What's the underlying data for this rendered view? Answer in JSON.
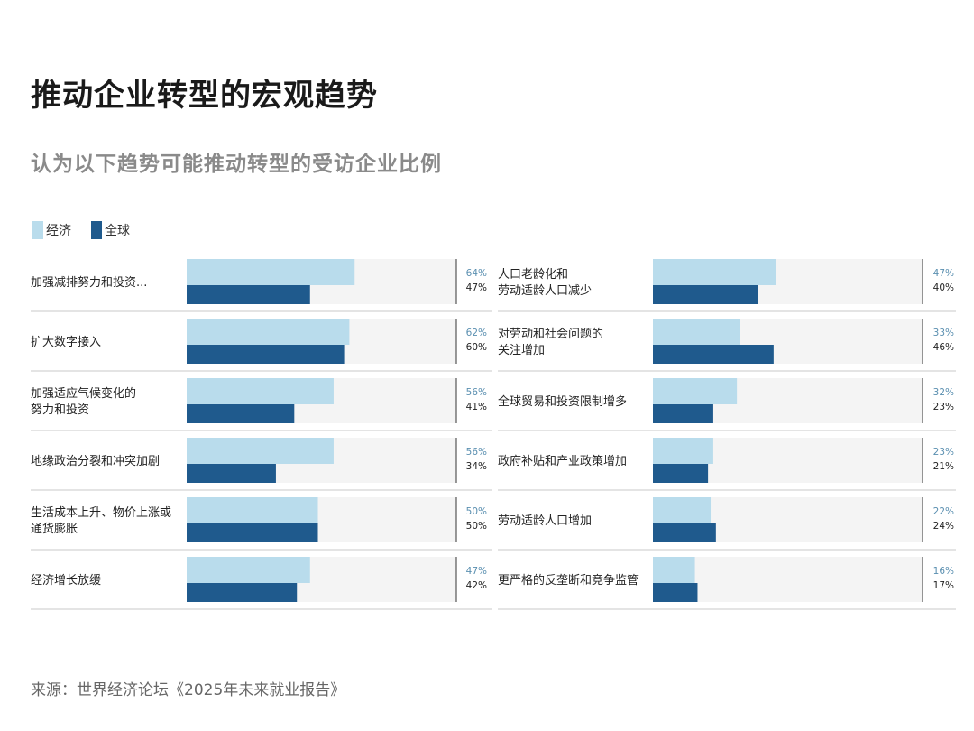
{
  "title": "推动企业转型的宏观趋势",
  "subtitle": "认为以下趋势可能推动转型的受访企业比例",
  "source": "来源：世界经济论坛《2025年未来就业报告》",
  "colors": {
    "economy": "#b9dcec",
    "global": "#1f5a8d",
    "track": "#f4f4f4",
    "economy_text": "#5a8fb0",
    "global_text": "#222222"
  },
  "chart_data": {
    "type": "bar",
    "orientation": "horizontal",
    "legend": [
      "经济",
      "全球"
    ],
    "xlim": [
      0,
      100
    ],
    "unit": "%",
    "panels": [
      {
        "rows": [
          {
            "label": [
              "加强减排努力和投资..."
            ],
            "economy": 64,
            "global": 47,
            "economy_label": "64%",
            "global_label": "47%"
          },
          {
            "label": [
              "扩大数字接入"
            ],
            "economy": 62,
            "global": 60,
            "economy_label": "62%",
            "global_label": "60%"
          },
          {
            "label": [
              "加强适应气候变化的",
              "努力和投资"
            ],
            "economy": 56,
            "global": 41,
            "economy_label": "56%",
            "global_label": "41%"
          },
          {
            "label": [
              "地缘政治分裂和冲突加剧"
            ],
            "economy": 56,
            "global": 34,
            "economy_label": "56%",
            "global_label": "34%"
          },
          {
            "label": [
              "生活成本上升、物价上涨或",
              "通货膨胀"
            ],
            "economy": 50,
            "global": 50,
            "economy_label": "50%",
            "global_label": "50%"
          },
          {
            "label": [
              "经济增长放缓"
            ],
            "economy": 47,
            "global": 42,
            "economy_label": "47%",
            "global_label": "42%"
          }
        ]
      },
      {
        "rows": [
          {
            "label": [
              "人口老龄化和",
              "劳动适龄人口减少"
            ],
            "economy": 47,
            "global": 40,
            "economy_label": "47%",
            "global_label": "40%"
          },
          {
            "label": [
              "对劳动和社会问题的",
              "关注增加"
            ],
            "economy": 33,
            "global": 46,
            "economy_label": "33%",
            "global_label": "46%"
          },
          {
            "label": [
              "全球贸易和投资限制增多"
            ],
            "economy": 32,
            "global": 23,
            "economy_label": "32%",
            "global_label": "23%"
          },
          {
            "label": [
              "政府补贴和产业政策增加"
            ],
            "economy": 23,
            "global": 21,
            "economy_label": "23%",
            "global_label": "21%"
          },
          {
            "label": [
              "劳动适龄人口增加"
            ],
            "economy": 22,
            "global": 24,
            "economy_label": "22%",
            "global_label": "24%"
          },
          {
            "label": [
              "更严格的反垄断和竞争监管"
            ],
            "economy": 16,
            "global": 17,
            "economy_label": "16%",
            "global_label": "17%"
          }
        ]
      }
    ]
  }
}
